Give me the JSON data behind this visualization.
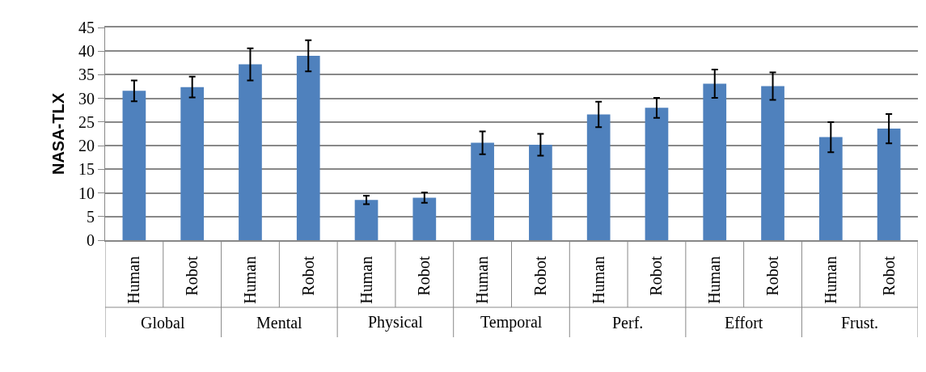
{
  "chart_data": {
    "type": "bar",
    "ylabel": "NASA-TLX",
    "categories": [
      "Human",
      "Robot",
      "Human",
      "Robot",
      "Human",
      "Robot",
      "Human",
      "Robot",
      "Human",
      "Robot",
      "Human",
      "Robot",
      "Human",
      "Robot"
    ],
    "values": [
      31.6,
      32.4,
      37.2,
      39.0,
      8.5,
      9.0,
      20.6,
      20.2,
      26.6,
      28.0,
      33.1,
      32.6,
      21.8,
      23.6
    ],
    "errors": [
      2.2,
      2.2,
      3.4,
      3.3,
      0.9,
      1.1,
      2.4,
      2.3,
      2.7,
      2.1,
      3.0,
      2.9,
      3.2,
      3.1
    ],
    "color": "#4f81bd",
    "annotations": [
      "Global",
      "Mental",
      "Physical",
      "Temporal",
      "Perf.",
      "Effort",
      "Frust."
    ],
    "ylim": [
      0,
      45
    ],
    "yticks": [
      0,
      5,
      10,
      15,
      20,
      25,
      30,
      35,
      40,
      45
    ],
    "grid": "y"
  }
}
